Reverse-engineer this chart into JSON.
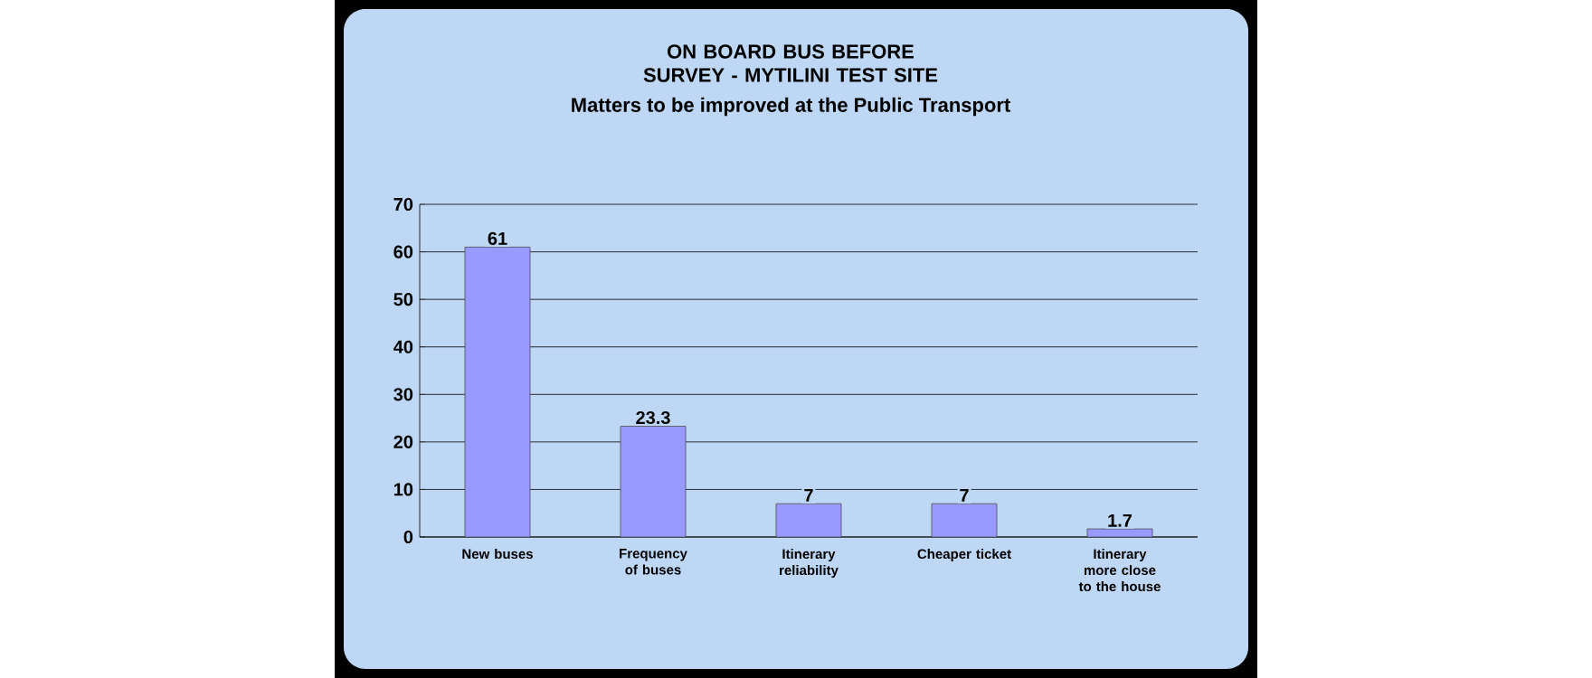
{
  "chart_data": {
    "type": "bar",
    "title": "ON BOARD BUS BEFORE SURVEY - MYTILINI TEST SITE",
    "subtitle": "Matters to be improved at the Public Transport",
    "categories": [
      "New buses",
      "Frequency of buses",
      "Itinerary reliability",
      "Cheaper ticket",
      "Itinerary more close to the house"
    ],
    "values": [
      61,
      23.3,
      7,
      7,
      1.7
    ],
    "color": "#9999ff",
    "data_labels": true,
    "ylim": [
      0,
      70
    ],
    "yticks": [
      0,
      10,
      20,
      30,
      40,
      50,
      60,
      70
    ],
    "grid": "y"
  }
}
